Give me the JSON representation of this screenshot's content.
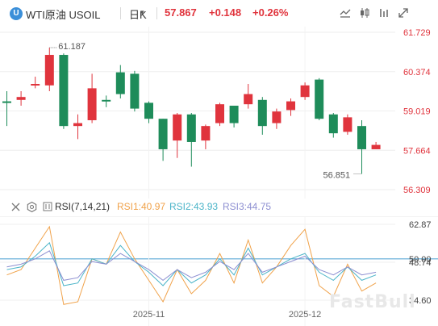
{
  "header": {
    "logo_letter": "U",
    "symbol_name": "WTI原油",
    "symbol_code": "USOIL",
    "period": "日K",
    "price": "57.867",
    "change": "+0.148",
    "change_pct": "+0.26%",
    "toolbar": [
      {
        "icon": "line-chart-icon"
      },
      {
        "icon": "candlestick-icon"
      },
      {
        "icon": "indicator-bars-icon"
      },
      {
        "icon": "expand-icon"
      }
    ]
  },
  "colors": {
    "up": "#e0343d",
    "down": "#1e8c5a",
    "price": "#e0343d",
    "rsi1": "#f0a24a",
    "rsi2": "#4bb4c8",
    "rsi3": "#8d8fd1",
    "rsi_ref": "#5aa9d6"
  },
  "chart_data": [
    {
      "type": "candlestick",
      "y_ticks": [
        "61.729",
        "60.374",
        "59.019",
        "57.664",
        "56.309"
      ],
      "ylim": [
        56.309,
        61.729
      ],
      "annotations": [
        "61.187",
        "56.851"
      ],
      "candles": [
        {
          "o": 59.35,
          "h": 59.7,
          "l": 58.5,
          "c": 59.32
        },
        {
          "o": 59.4,
          "h": 59.7,
          "l": 59.2,
          "c": 59.5
        },
        {
          "o": 59.9,
          "h": 60.2,
          "l": 59.8,
          "c": 59.95
        },
        {
          "o": 59.9,
          "h": 61.2,
          "l": 59.7,
          "c": 60.95
        },
        {
          "o": 60.95,
          "h": 61.0,
          "l": 58.4,
          "c": 58.5
        },
        {
          "o": 58.5,
          "h": 58.9,
          "l": 58.05,
          "c": 58.6
        },
        {
          "o": 58.7,
          "h": 60.3,
          "l": 58.6,
          "c": 59.8
        },
        {
          "o": 59.4,
          "h": 59.55,
          "l": 59.15,
          "c": 59.35
        },
        {
          "o": 60.35,
          "h": 60.6,
          "l": 59.45,
          "c": 59.6
        },
        {
          "o": 60.3,
          "h": 60.4,
          "l": 59.0,
          "c": 59.1
        },
        {
          "o": 59.3,
          "h": 59.35,
          "l": 58.6,
          "c": 58.75
        },
        {
          "o": 58.75,
          "h": 58.75,
          "l": 57.3,
          "c": 57.7
        },
        {
          "o": 58.0,
          "h": 58.95,
          "l": 57.4,
          "c": 58.9
        },
        {
          "o": 58.9,
          "h": 58.95,
          "l": 57.1,
          "c": 57.95
        },
        {
          "o": 58.0,
          "h": 58.55,
          "l": 57.7,
          "c": 58.5
        },
        {
          "o": 58.6,
          "h": 59.3,
          "l": 58.5,
          "c": 59.25
        },
        {
          "o": 59.2,
          "h": 59.2,
          "l": 58.45,
          "c": 58.6
        },
        {
          "o": 59.25,
          "h": 59.95,
          "l": 59.1,
          "c": 59.6
        },
        {
          "o": 59.4,
          "h": 59.5,
          "l": 58.2,
          "c": 58.5
        },
        {
          "o": 58.6,
          "h": 59.1,
          "l": 58.4,
          "c": 59.0
        },
        {
          "o": 59.05,
          "h": 59.45,
          "l": 58.85,
          "c": 59.35
        },
        {
          "o": 59.5,
          "h": 60.0,
          "l": 59.4,
          "c": 59.9
        },
        {
          "o": 60.1,
          "h": 60.15,
          "l": 58.7,
          "c": 58.75
        },
        {
          "o": 58.9,
          "h": 58.95,
          "l": 58.1,
          "c": 58.25
        },
        {
          "o": 58.3,
          "h": 58.9,
          "l": 58.2,
          "c": 58.8
        },
        {
          "o": 58.5,
          "h": 58.7,
          "l": 56.85,
          "c": 57.7
        },
        {
          "o": 57.7,
          "h": 57.95,
          "l": 57.7,
          "c": 57.85
        }
      ]
    },
    {
      "type": "line",
      "title": "RSI(7,14,21)",
      "legend": [
        {
          "label": "RSI1:40.97",
          "color": "#f0a24a"
        },
        {
          "label": "RSI2:43.93",
          "color": "#4bb4c8"
        },
        {
          "label": "RSI3:44.75",
          "color": "#8d8fd1"
        }
      ],
      "y_ticks": [
        "62.87",
        "48.74",
        "34.60"
      ],
      "ylim": [
        34.6,
        62.87
      ],
      "ref_line": {
        "value": 50.0,
        "label": "50.00"
      },
      "x_labels": [
        {
          "index": 10,
          "label": "2025-11"
        },
        {
          "index": 21,
          "label": "2025-12"
        }
      ],
      "series": [
        {
          "name": "RSI1",
          "values": [
            44,
            46,
            54,
            62,
            33,
            34,
            50,
            48,
            60,
            50,
            42,
            34,
            46,
            37,
            42,
            52,
            41,
            57,
            41,
            47,
            55,
            61,
            40,
            36,
            48,
            38,
            41
          ]
        },
        {
          "name": "RSI2",
          "values": [
            46,
            47,
            51,
            56,
            40,
            41,
            50,
            48,
            55,
            49,
            45,
            40,
            46,
            41,
            44,
            50,
            44,
            54,
            44,
            47,
            50,
            52,
            45,
            42,
            47,
            42,
            44
          ]
        },
        {
          "name": "RSI3",
          "values": [
            47,
            48,
            50,
            53,
            42,
            43,
            49,
            48,
            52,
            49,
            46,
            42,
            46,
            43,
            45,
            49,
            46,
            52,
            45,
            47,
            49,
            51,
            46,
            44,
            47,
            44,
            45
          ]
        }
      ]
    }
  ],
  "watermark": "FastBull"
}
